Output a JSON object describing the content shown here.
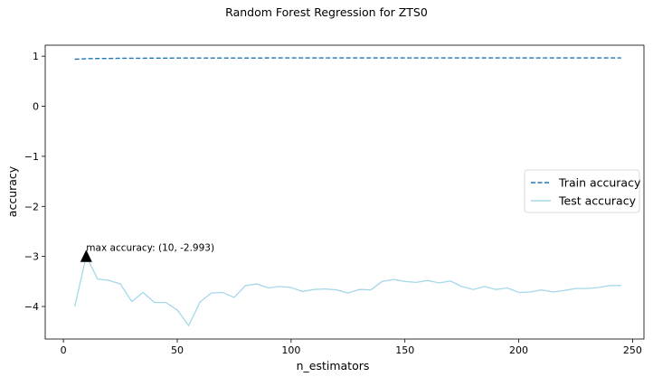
{
  "chart_data": {
    "type": "line",
    "title": "Random Forest Regression for ZTS0",
    "xlabel": "n_estimators",
    "ylabel": "accuracy",
    "xlim": [
      -8,
      255
    ],
    "ylim": [
      -4.65,
      1.22
    ],
    "xticks": [
      0,
      50,
      100,
      150,
      200,
      250
    ],
    "yticks": [
      1,
      0,
      -1,
      -2,
      -3,
      -4
    ],
    "ytick_labels": [
      "1",
      "0",
      "−1",
      "−2",
      "−3",
      "−4"
    ],
    "grid": false,
    "legend_position": "center-right",
    "x": [
      5,
      10,
      15,
      20,
      25,
      30,
      35,
      40,
      45,
      50,
      55,
      60,
      65,
      70,
      75,
      80,
      85,
      90,
      95,
      100,
      105,
      110,
      115,
      120,
      125,
      130,
      135,
      140,
      145,
      150,
      155,
      160,
      165,
      170,
      175,
      180,
      185,
      190,
      195,
      200,
      205,
      210,
      215,
      220,
      225,
      230,
      235,
      240,
      245
    ],
    "series": [
      {
        "name": "Train accuracy",
        "style": "dashed",
        "color": "#1f77b4",
        "values": [
          0.94,
          0.95,
          0.955,
          0.955,
          0.96,
          0.96,
          0.96,
          0.962,
          0.962,
          0.963,
          0.963,
          0.963,
          0.964,
          0.964,
          0.964,
          0.964,
          0.964,
          0.965,
          0.965,
          0.965,
          0.965,
          0.965,
          0.965,
          0.965,
          0.965,
          0.965,
          0.965,
          0.965,
          0.965,
          0.966,
          0.966,
          0.966,
          0.966,
          0.966,
          0.966,
          0.966,
          0.966,
          0.966,
          0.966,
          0.966,
          0.966,
          0.966,
          0.966,
          0.966,
          0.966,
          0.966,
          0.966,
          0.966,
          0.966
        ]
      },
      {
        "name": "Test accuracy",
        "style": "solid",
        "color": "#a6d8ea",
        "values": [
          -4.0,
          -2.993,
          -3.45,
          -3.48,
          -3.55,
          -3.9,
          -3.72,
          -3.92,
          -3.92,
          -4.07,
          -4.38,
          -3.91,
          -3.73,
          -3.72,
          -3.82,
          -3.58,
          -3.55,
          -3.63,
          -3.6,
          -3.62,
          -3.7,
          -3.66,
          -3.65,
          -3.67,
          -3.73,
          -3.66,
          -3.67,
          -3.5,
          -3.46,
          -3.5,
          -3.52,
          -3.48,
          -3.53,
          -3.49,
          -3.6,
          -3.66,
          -3.6,
          -3.66,
          -3.63,
          -3.72,
          -3.71,
          -3.67,
          -3.71,
          -3.68,
          -3.64,
          -3.64,
          -3.62,
          -3.58,
          -3.58
        ]
      }
    ],
    "annotation": {
      "text": "max accuracy: (10, -2.993)",
      "point": [
        10,
        -2.993
      ],
      "marker_color": "#000000"
    }
  }
}
